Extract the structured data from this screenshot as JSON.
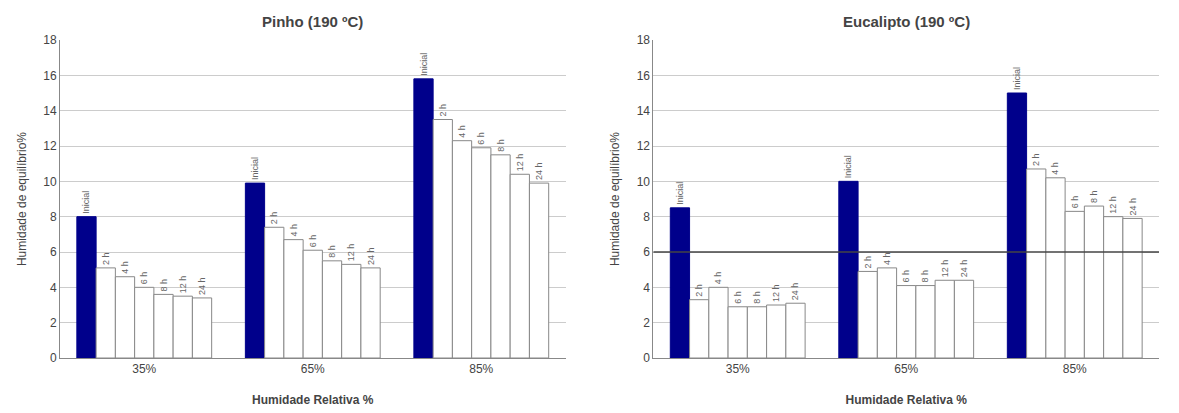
{
  "chart_data": [
    {
      "type": "bar",
      "title": "Pinho (190 ºC)",
      "xlabel": "Humidade Relativa %",
      "ylabel": "Humidade de equilíbrio%",
      "categories": [
        "35%",
        "65%",
        "85%"
      ],
      "series": [
        {
          "name": "Inicial",
          "color": "#00008B",
          "values": [
            8.0,
            9.9,
            15.8
          ]
        },
        {
          "name": "2 h",
          "color": "#FFFFFF",
          "values": [
            5.1,
            7.4,
            13.5
          ]
        },
        {
          "name": "4 h",
          "color": "#FFFFFF",
          "values": [
            4.6,
            6.7,
            12.3
          ]
        },
        {
          "name": "6 h",
          "color": "#FFFFFF",
          "values": [
            4.0,
            6.1,
            11.9
          ]
        },
        {
          "name": "8 h",
          "color": "#FFFFFF",
          "values": [
            3.6,
            5.5,
            11.5
          ]
        },
        {
          "name": "12 h",
          "color": "#FFFFFF",
          "values": [
            3.5,
            5.3,
            10.4
          ]
        },
        {
          "name": "24 h",
          "color": "#FFFFFF",
          "values": [
            3.4,
            5.1,
            9.9
          ]
        }
      ],
      "ylim": [
        0,
        18
      ],
      "yticks": [
        0,
        2,
        4,
        6,
        8,
        10,
        12,
        14,
        16,
        18
      ],
      "grid": true
    },
    {
      "type": "bar",
      "title": "Eucalipto (190 ºC)",
      "xlabel": "Humidade Relativa %",
      "ylabel": "Humidade de equilíbrio%",
      "categories": [
        "35%",
        "65%",
        "85%"
      ],
      "series": [
        {
          "name": "Inicial",
          "color": "#00008B",
          "values": [
            8.5,
            10.0,
            15.0
          ]
        },
        {
          "name": "2 h",
          "color": "#FFFFFF",
          "values": [
            3.3,
            4.9,
            10.7
          ]
        },
        {
          "name": "4 h",
          "color": "#FFFFFF",
          "values": [
            4.0,
            5.1,
            10.2
          ]
        },
        {
          "name": "6 h",
          "color": "#FFFFFF",
          "values": [
            2.9,
            4.1,
            8.3
          ]
        },
        {
          "name": "8 h",
          "color": "#FFFFFF",
          "values": [
            2.9,
            4.1,
            8.6
          ]
        },
        {
          "name": "12 h",
          "color": "#FFFFFF",
          "values": [
            3.0,
            4.4,
            8.0
          ]
        },
        {
          "name": "24 h",
          "color": "#FFFFFF",
          "values": [
            3.1,
            4.4,
            7.9
          ]
        }
      ],
      "hline": 6.0,
      "ylim": [
        0,
        18
      ],
      "yticks": [
        0,
        2,
        4,
        6,
        8,
        10,
        12,
        14,
        16,
        18
      ],
      "grid": true
    }
  ]
}
